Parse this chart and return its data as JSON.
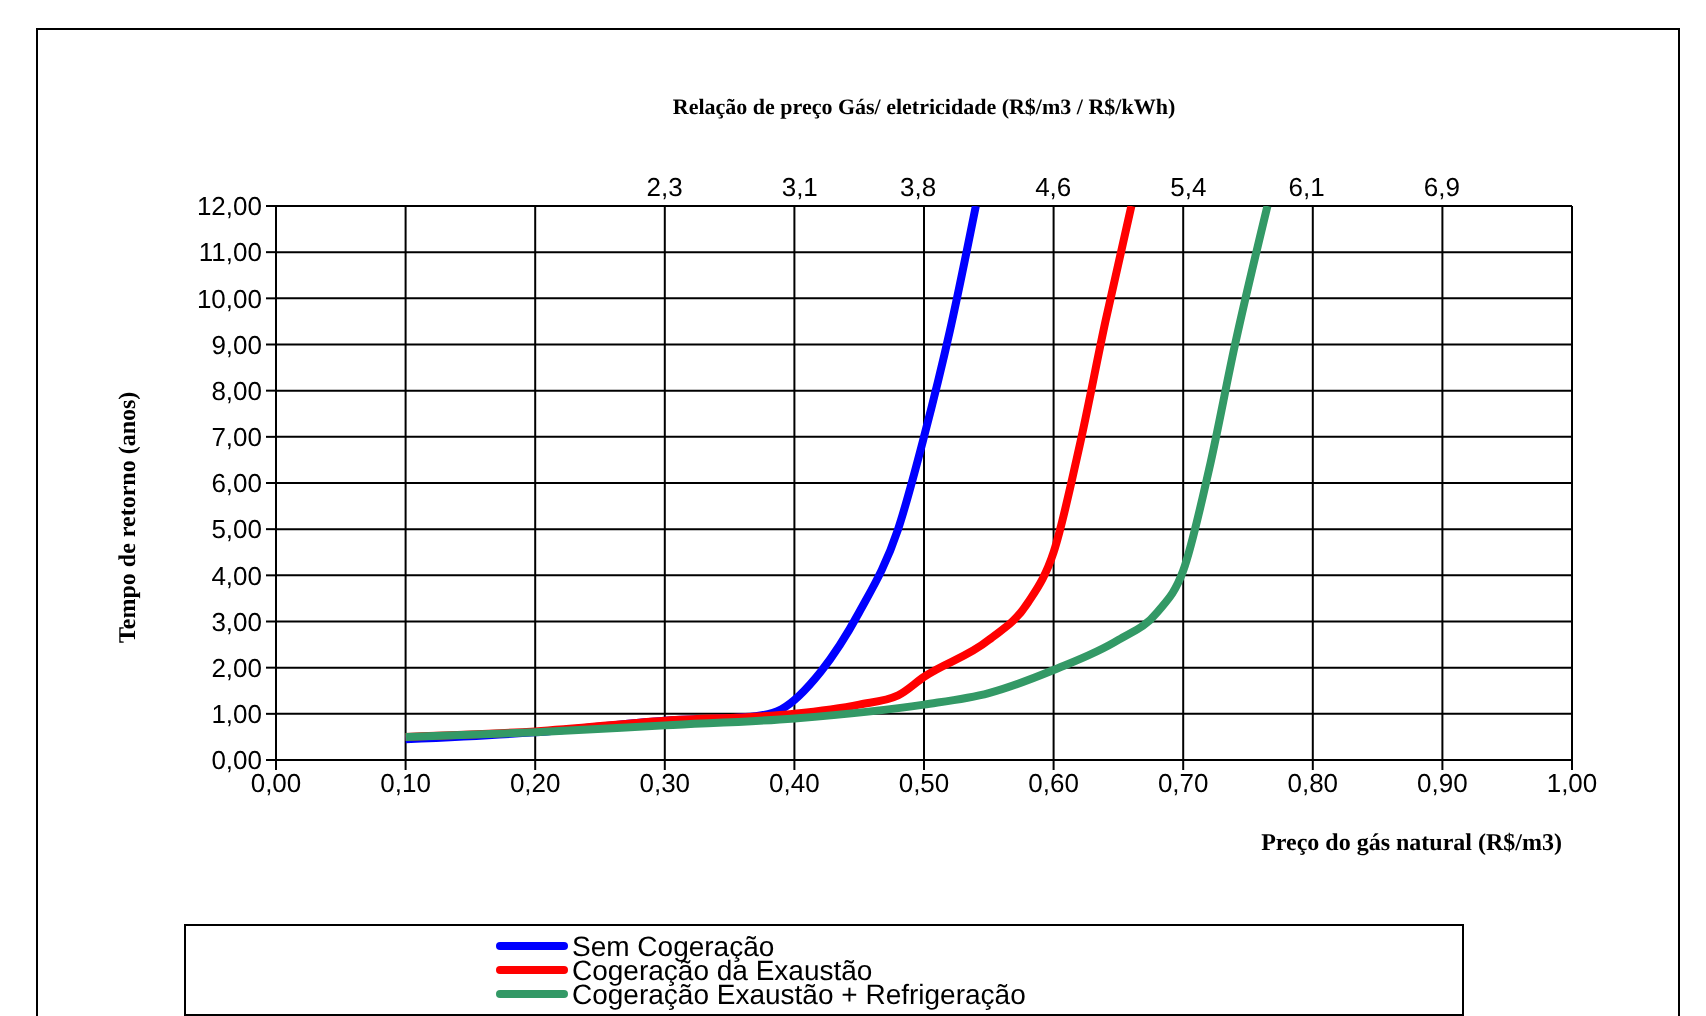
{
  "chart_data": {
    "type": "line",
    "x2label": "Relação de preço Gás/ eletricidade  (R$/m3 / R$/kWh)",
    "xlabel": "Preço do gás natural (R$/m3)",
    "ylabel": "Tempo de retorno (anos)",
    "series": [
      {
        "name": "Sem Cogeração",
        "color": "#0000ff",
        "x": [
          0.1,
          0.2,
          0.3,
          0.37,
          0.39,
          0.42,
          0.45,
          0.48,
          0.5,
          0.52,
          0.54
        ],
        "values": [
          0.45,
          0.6,
          0.85,
          0.95,
          1.1,
          1.9,
          3.2,
          5,
          7,
          9.3,
          12
        ]
      },
      {
        "name": "Cogeração da Exaustão",
        "color": "#ff0000",
        "x": [
          0.1,
          0.2,
          0.3,
          0.4,
          0.45,
          0.48,
          0.5,
          0.55,
          0.58,
          0.6,
          0.62,
          0.64,
          0.66
        ],
        "values": [
          0.5,
          0.62,
          0.85,
          1,
          1.2,
          1.4,
          1.8,
          2.6,
          3.4,
          4.5,
          6.8,
          9.5,
          12
        ]
      },
      {
        "name": "Cogeração Exaustão + Refrigeração",
        "color": "#339966",
        "x": [
          0.1,
          0.2,
          0.3,
          0.4,
          0.5,
          0.55,
          0.6,
          0.65,
          0.68,
          0.7,
          0.72,
          0.74,
          0.765
        ],
        "values": [
          0.5,
          0.6,
          0.75,
          0.9,
          1.2,
          1.45,
          1.95,
          2.6,
          3.2,
          4.1,
          6.3,
          9,
          12
        ]
      }
    ],
    "xlim": [
      0,
      1
    ],
    "xticks": [
      {
        "value": 0,
        "label": "0,00"
      },
      {
        "value": 0.1,
        "label": "0,10"
      },
      {
        "value": 0.2,
        "label": "0,20"
      },
      {
        "value": 0.3,
        "label": "0,30"
      },
      {
        "value": 0.4,
        "label": "0,40"
      },
      {
        "value": 0.5,
        "label": "0,50"
      },
      {
        "value": 0.6,
        "label": "0,60"
      },
      {
        "value": 0.7,
        "label": "0,70"
      },
      {
        "value": 0.8,
        "label": "0,80"
      },
      {
        "value": 0.9,
        "label": "0,90"
      },
      {
        "value": 1,
        "label": "1,00"
      }
    ],
    "x2lim": [
      0,
      7.67
    ],
    "x2ticks": [
      {
        "value": 2.3,
        "label": "2,3"
      },
      {
        "value": 3.1,
        "label": "3,1"
      },
      {
        "value": 3.8,
        "label": "3,8"
      },
      {
        "value": 4.6,
        "label": "4,6"
      },
      {
        "value": 5.4,
        "label": "5,4"
      },
      {
        "value": 6.1,
        "label": "6,1"
      },
      {
        "value": 6.9,
        "label": "6,9"
      }
    ],
    "ylim": [
      0,
      12
    ],
    "yticks": [
      {
        "value": 0,
        "label": "0,00"
      },
      {
        "value": 1,
        "label": "1,00"
      },
      {
        "value": 2,
        "label": "2,00"
      },
      {
        "value": 3,
        "label": "3,00"
      },
      {
        "value": 4,
        "label": "4,00"
      },
      {
        "value": 5,
        "label": "5,00"
      },
      {
        "value": 6,
        "label": "6,00"
      },
      {
        "value": 7,
        "label": "7,00"
      },
      {
        "value": 8,
        "label": "8,00"
      },
      {
        "value": 9,
        "label": "9,00"
      },
      {
        "value": 10,
        "label": "10,00"
      },
      {
        "value": 11,
        "label": "11,00"
      },
      {
        "value": 12,
        "label": "12,00"
      }
    ],
    "grid": true,
    "legend": "bottom",
    "marker": "none",
    "line_style": "solid"
  }
}
